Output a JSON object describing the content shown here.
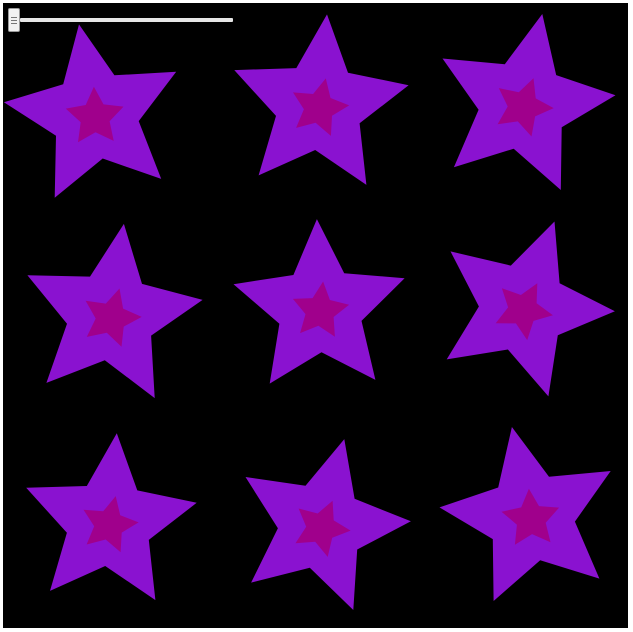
{
  "scene": {
    "background": "#000000",
    "outer_star_color": "#8a12d0",
    "inner_star_color": "#a0008c",
    "star_count": 9,
    "rows": 3,
    "columns": 3
  },
  "slider": {
    "value": 0.0,
    "track_color": "#e6e6e6",
    "thumb_icon": "slider-grip-icon"
  }
}
